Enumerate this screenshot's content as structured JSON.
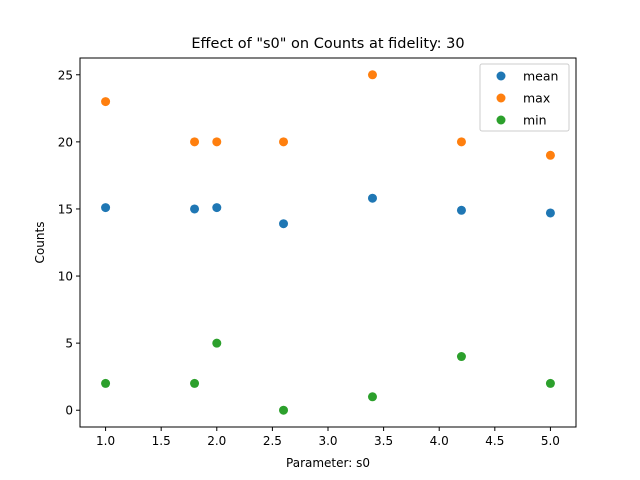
{
  "chart_data": {
    "type": "scatter",
    "title": "Effect of \"s0\" on Counts at fidelity: 30",
    "xlabel": "Parameter: s0",
    "ylabel": "Counts",
    "xlim": [
      0.77,
      5.23
    ],
    "ylim": [
      -1.25,
      26.25
    ],
    "xticks": [
      1.0,
      1.5,
      2.0,
      2.5,
      3.0,
      3.5,
      4.0,
      4.5,
      5.0
    ],
    "xtick_labels": [
      "1.0",
      "1.5",
      "2.0",
      "2.5",
      "3.0",
      "3.5",
      "4.0",
      "4.5",
      "5.0"
    ],
    "yticks": [
      0,
      5,
      10,
      15,
      20,
      25
    ],
    "ytick_labels": [
      "0",
      "5",
      "10",
      "15",
      "20",
      "25"
    ],
    "grid": false,
    "legend": "top-right",
    "x": [
      1.0,
      1.8,
      2.0,
      2.6,
      3.4,
      4.2,
      5.0
    ],
    "series": [
      {
        "name": "mean",
        "color": "#1f77b4",
        "values": [
          15.1,
          15.0,
          15.1,
          13.9,
          15.8,
          14.9,
          14.7
        ]
      },
      {
        "name": "max",
        "color": "#ff7f0e",
        "values": [
          23,
          20,
          20,
          20,
          25,
          20,
          19
        ]
      },
      {
        "name": "min",
        "color": "#2ca02c",
        "values": [
          2,
          2,
          5,
          0,
          1,
          4,
          2
        ]
      }
    ]
  }
}
